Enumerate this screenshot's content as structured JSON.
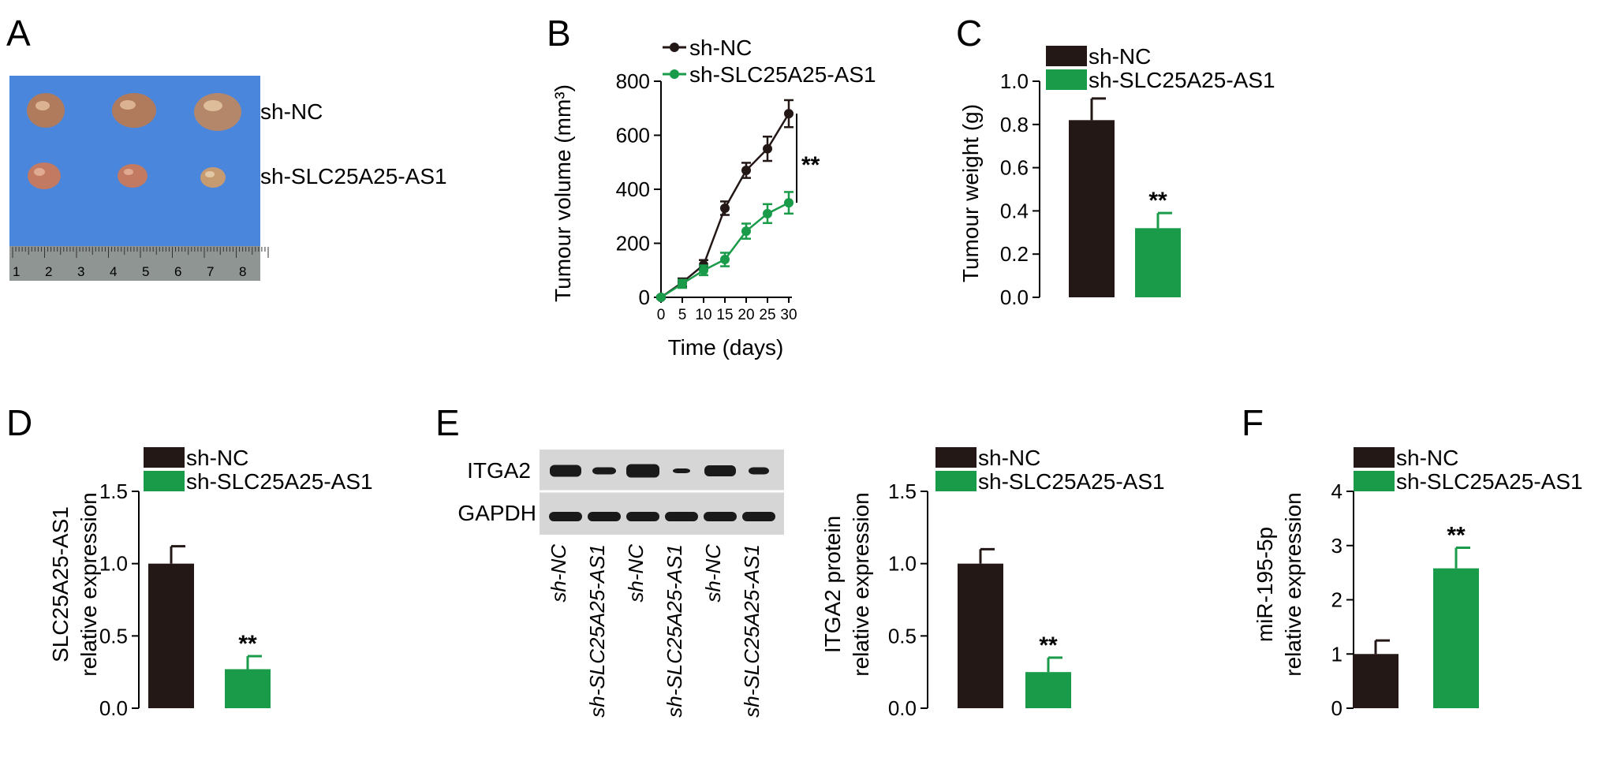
{
  "colors": {
    "dark": "#231816",
    "green": "#1a9b4a",
    "photo_bg": "#4a86dc",
    "blot_bg": "#d6d6d6"
  },
  "panels": {
    "A": {
      "letter": "A",
      "row_labels": [
        "sh-NC",
        "sh-SLC25A25-AS1"
      ],
      "ruler_numbers": [
        "1",
        "2",
        "3",
        "4",
        "5",
        "6",
        "7",
        "8"
      ]
    },
    "B": {
      "letter": "B",
      "significance": "**"
    },
    "C": {
      "letter": "C",
      "significance": "**"
    },
    "D": {
      "letter": "D",
      "significance": "**"
    },
    "E": {
      "letter": "E",
      "significance": "**",
      "blot_rows": [
        "ITGA2",
        "GAPDH"
      ],
      "lanes": [
        "sh-NC",
        "sh-SLC25A25-AS1",
        "sh-NC",
        "sh-SLC25A25-AS1",
        "sh-NC",
        "sh-SLC25A25-AS1"
      ]
    },
    "F": {
      "letter": "F",
      "significance": "**"
    }
  },
  "legend": {
    "nc": "sh-NC",
    "kd": "sh-SLC25A25-AS1"
  },
  "chart_data": [
    {
      "panel": "B",
      "type": "line",
      "xlabel": "Time (days)",
      "ylabel": "Tumour volume (mm³)",
      "x": [
        0,
        5,
        10,
        15,
        20,
        25,
        30
      ],
      "xticks": [
        "0",
        "5",
        "10",
        "15",
        "20",
        "25",
        "30"
      ],
      "yticks": [
        "0",
        "200",
        "400",
        "600",
        "800"
      ],
      "ylim": [
        0,
        800
      ],
      "series": [
        {
          "name": "sh-NC",
          "values": [
            0,
            55,
            120,
            330,
            470,
            550,
            680
          ],
          "errors": [
            5,
            15,
            18,
            25,
            28,
            45,
            50
          ]
        },
        {
          "name": "sh-SLC25A25-AS1",
          "values": [
            0,
            50,
            100,
            140,
            245,
            310,
            350
          ],
          "errors": [
            5,
            15,
            18,
            25,
            28,
            35,
            40
          ]
        }
      ],
      "annotation": "**"
    },
    {
      "panel": "C",
      "type": "bar",
      "ylabel": "Tumour weight (g)",
      "categories": [
        "sh-NC",
        "sh-SLC25A25-AS1"
      ],
      "values": [
        0.82,
        0.32
      ],
      "errors": [
        0.1,
        0.07
      ],
      "yticks": [
        "0.0",
        "0.2",
        "0.4",
        "0.6",
        "0.8",
        "1.0"
      ],
      "ylim": [
        0,
        1.0
      ]
    },
    {
      "panel": "D",
      "type": "bar",
      "ylabel_lines": [
        "SLC25A25-AS1",
        "relative expression"
      ],
      "categories": [
        "sh-NC",
        "sh-SLC25A25-AS1"
      ],
      "values": [
        1.0,
        0.27
      ],
      "errors": [
        0.12,
        0.09
      ],
      "yticks": [
        "0.0",
        "0.5",
        "1.0",
        "1.5"
      ],
      "ylim": [
        0,
        1.5
      ]
    },
    {
      "panel": "E",
      "type": "bar",
      "ylabel_lines": [
        "ITGA2 protein",
        "relative expression"
      ],
      "categories": [
        "sh-NC",
        "sh-SLC25A25-AS1"
      ],
      "values": [
        1.0,
        0.25
      ],
      "errors": [
        0.1,
        0.1
      ],
      "yticks": [
        "0.0",
        "0.5",
        "1.0",
        "1.5"
      ],
      "ylim": [
        0,
        1.5
      ]
    },
    {
      "panel": "F",
      "type": "bar",
      "ylabel_lines": [
        "miR-195-5p",
        "relative expression"
      ],
      "categories": [
        "sh-NC",
        "sh-SLC25A25-AS1"
      ],
      "values": [
        1.0,
        2.58
      ],
      "errors": [
        0.25,
        0.38
      ],
      "yticks": [
        "0",
        "1",
        "2",
        "3",
        "4"
      ],
      "ylim": [
        0,
        4
      ]
    }
  ]
}
